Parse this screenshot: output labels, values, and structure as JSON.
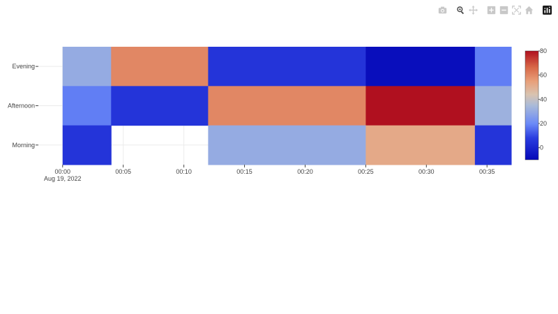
{
  "modebar": {
    "buttons": [
      "camera-icon",
      "zoom-icon",
      "pan-icon",
      "zoom-in-icon",
      "zoom-out-icon",
      "autoscale-icon",
      "reset-axes-icon",
      "plotly-logo-icon"
    ]
  },
  "chart_data": {
    "type": "heatmap",
    "title": "",
    "xlabel": "",
    "ylabel": "",
    "x": [
      "00:00",
      "00:05",
      "00:10",
      "00:15",
      "00:20",
      "00:25",
      "00:30",
      "00:35"
    ],
    "x_tick_labels": [
      "00:00",
      "00:05",
      "00:10",
      "00:15",
      "00:20",
      "00:25",
      "00:30",
      "00:35"
    ],
    "x_tick_sublabel": "Aug 19, 2022",
    "y": [
      "Morning",
      "Afternoon",
      "Evening"
    ],
    "x_range": [
      "23:58",
      "00:37"
    ],
    "grid": true,
    "colorscale": "RdBu_r",
    "zmin": -10,
    "zmax": 80,
    "colorbar_ticks": [
      0,
      20,
      40,
      60,
      80
    ],
    "cells": [
      {
        "x": "00:00",
        "x_end": "00:04",
        "y": "Evening",
        "z": 30
      },
      {
        "x": "00:04",
        "x_end": "00:12",
        "y": "Evening",
        "z": 60
      },
      {
        "x": "00:12",
        "x_end": "00:25",
        "y": "Evening",
        "z": 5
      },
      {
        "x": "00:25",
        "x_end": "00:34",
        "y": "Evening",
        "z": -8
      },
      {
        "x": "00:34",
        "x_end": "00:37",
        "y": "Evening",
        "z": 18
      },
      {
        "x": "00:00",
        "x_end": "00:04",
        "y": "Afternoon",
        "z": 18
      },
      {
        "x": "00:04",
        "x_end": "00:12",
        "y": "Afternoon",
        "z": 5
      },
      {
        "x": "00:12",
        "x_end": "00:25",
        "y": "Afternoon",
        "z": 60
      },
      {
        "x": "00:25",
        "x_end": "00:34",
        "y": "Afternoon",
        "z": 80
      },
      {
        "x": "00:34",
        "x_end": "00:37",
        "y": "Afternoon",
        "z": 32
      },
      {
        "x": "00:00",
        "x_end": "00:04",
        "y": "Morning",
        "z": 5
      },
      {
        "x": "00:12",
        "x_end": "00:25",
        "y": "Morning",
        "z": 30
      },
      {
        "x": "00:25",
        "x_end": "00:34",
        "y": "Morning",
        "z": 52
      },
      {
        "x": "00:34",
        "x_end": "00:37",
        "y": "Morning",
        "z": 5
      }
    ]
  }
}
